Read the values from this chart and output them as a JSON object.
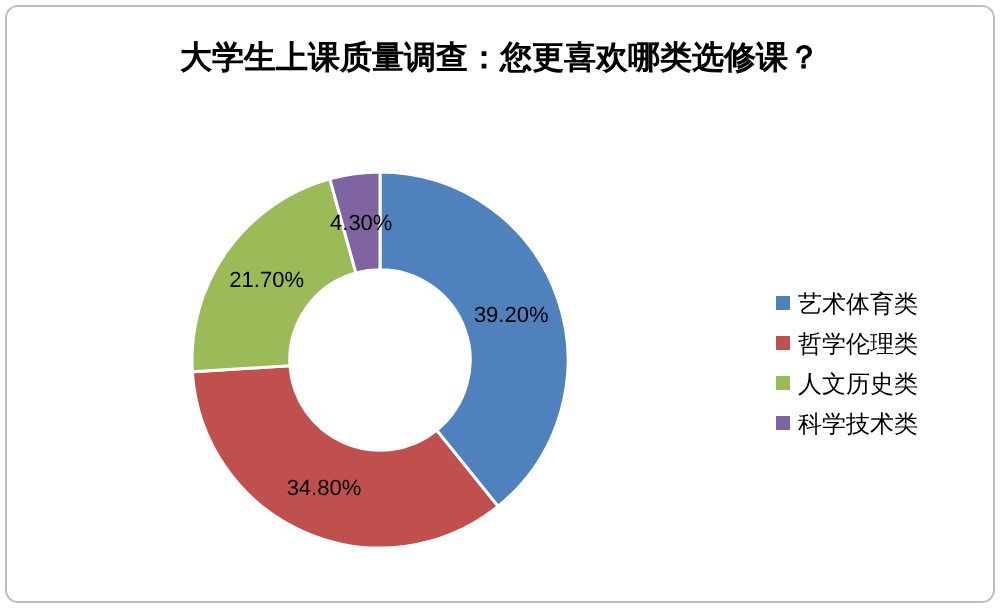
{
  "chart_data": {
    "type": "donut",
    "title": "大学生上课质量调查：您更喜欢哪类选修课？",
    "categories": [
      "艺术体育类",
      "哲学伦理类",
      "人文历史类",
      "科学技术类"
    ],
    "values": [
      39.2,
      34.8,
      21.7,
      4.3
    ],
    "colors": [
      "#4f81bd",
      "#c0504d",
      "#9bbb59",
      "#8064a2"
    ],
    "value_labels": [
      "39.20%",
      "34.80%",
      "21.70%",
      "4.30%"
    ],
    "legend": "right"
  }
}
